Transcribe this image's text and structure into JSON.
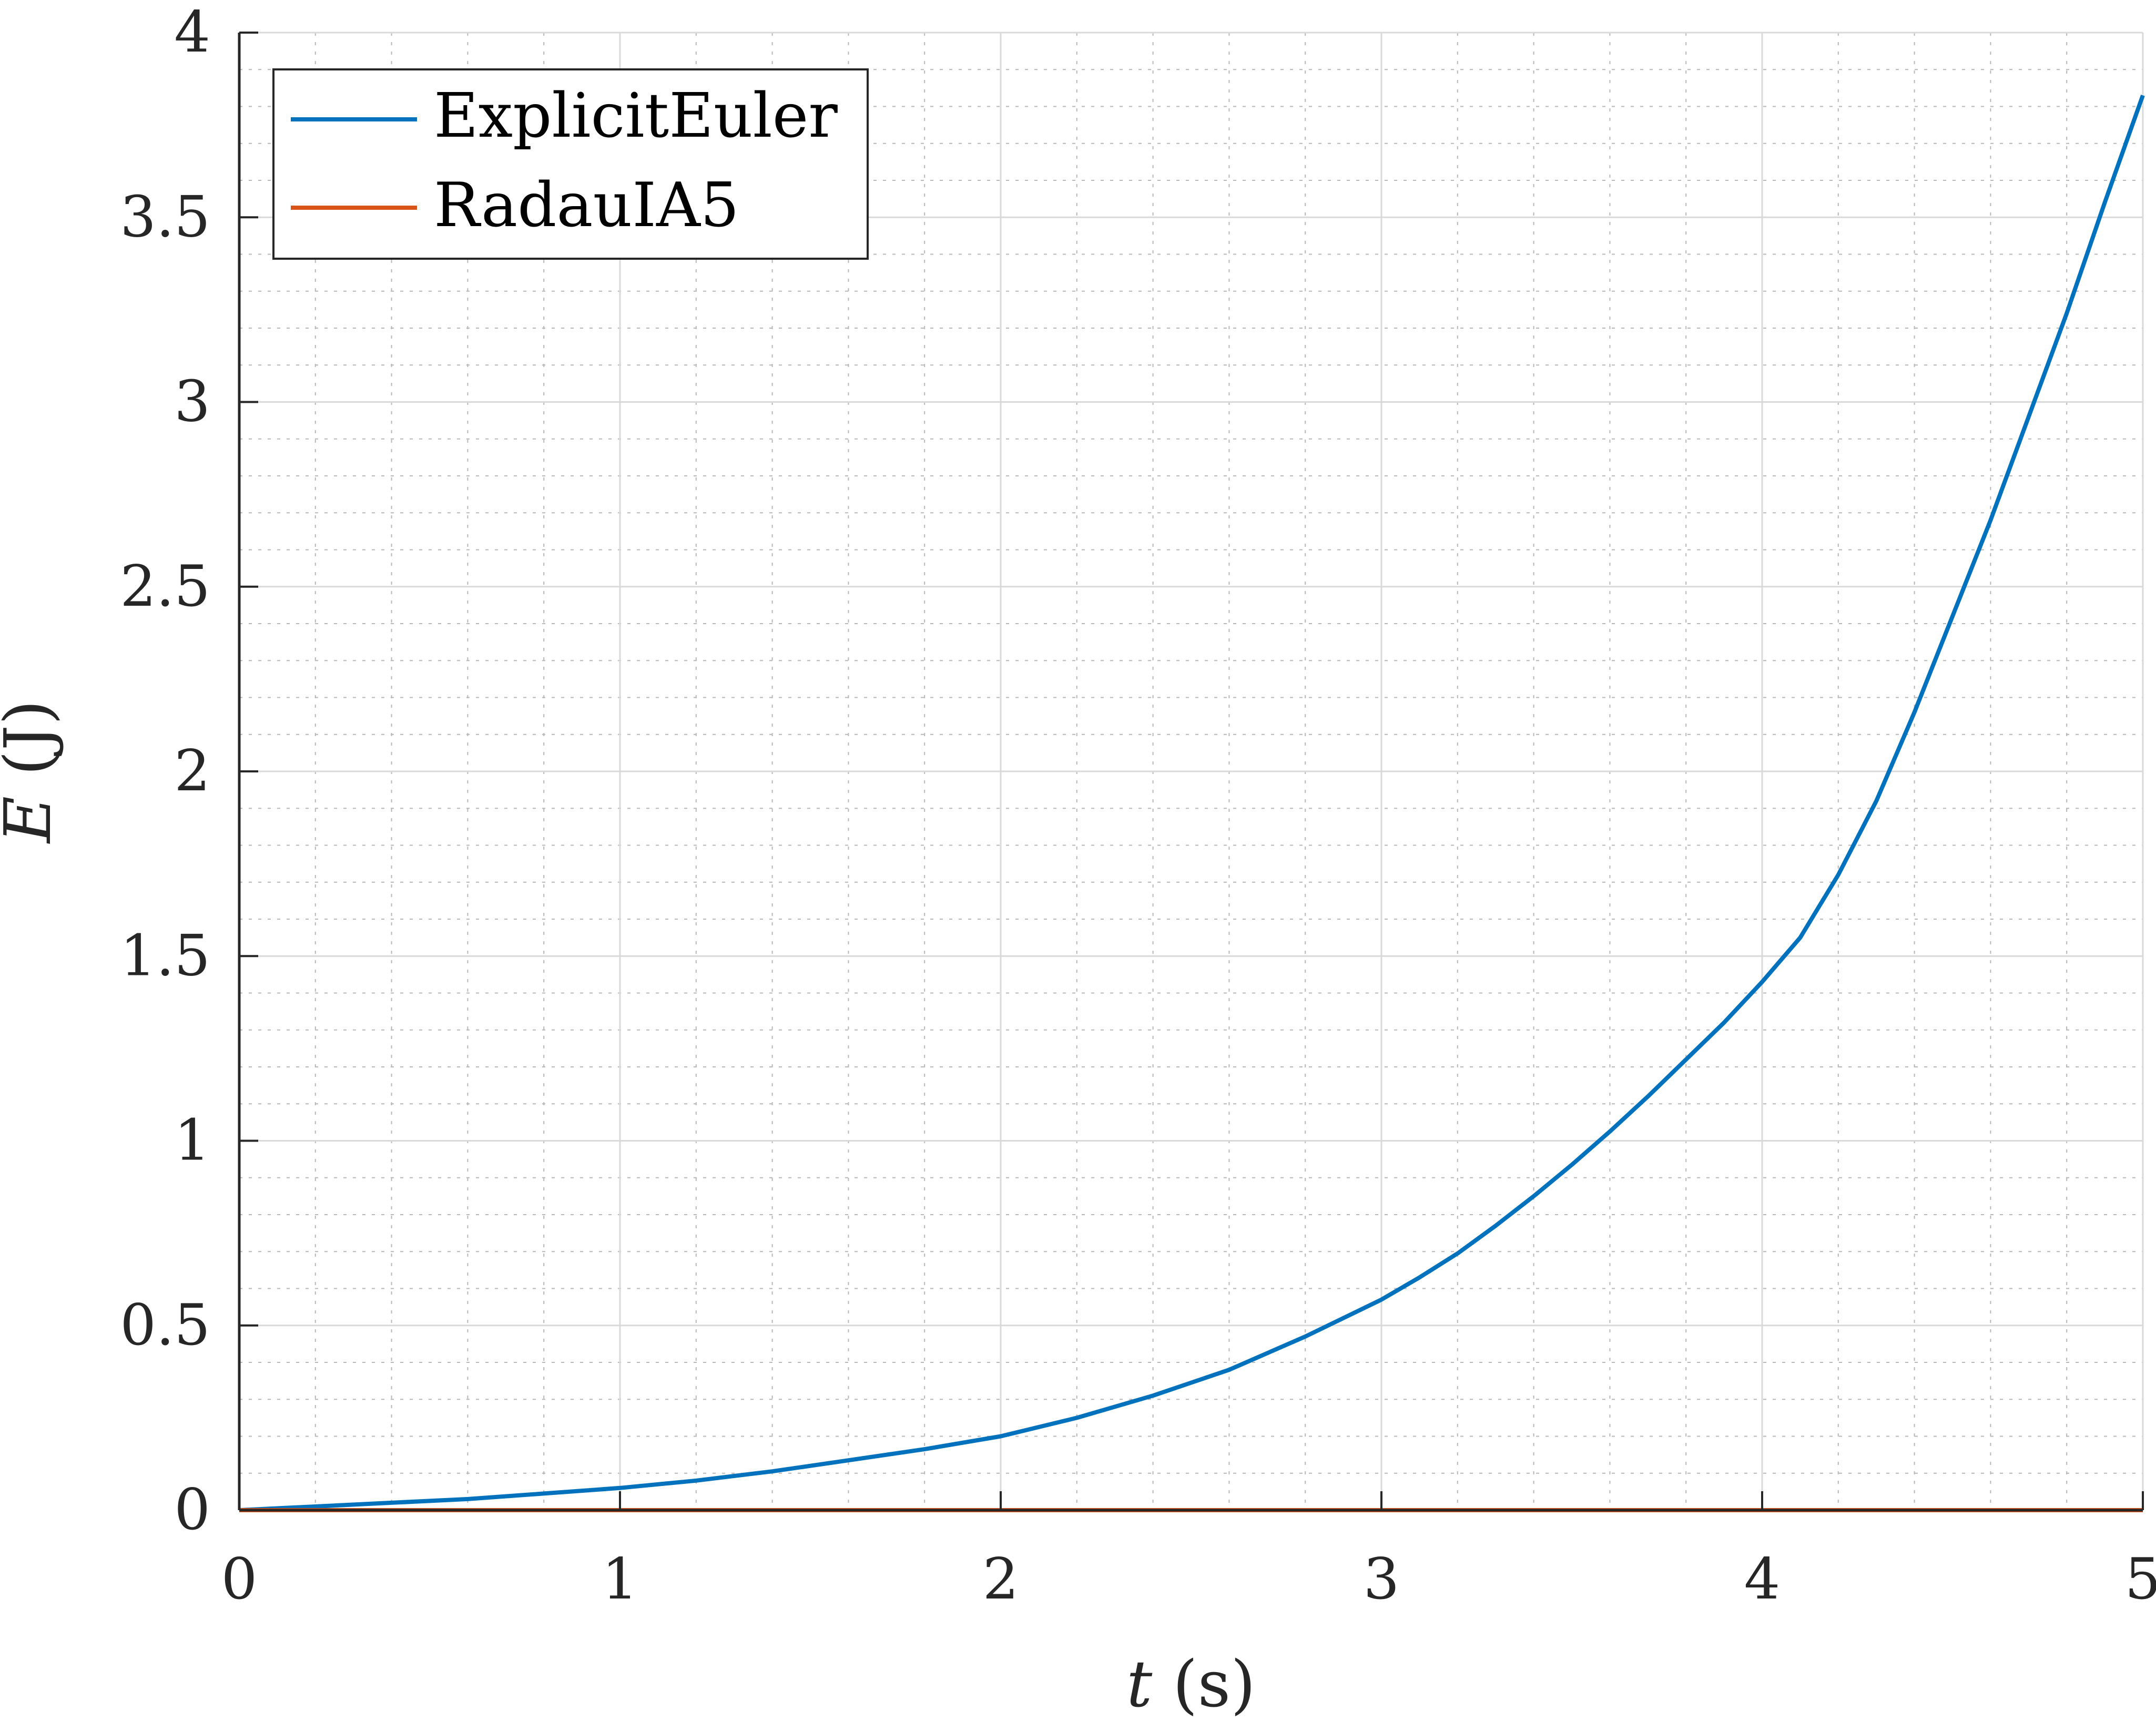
{
  "chart_data": {
    "type": "line",
    "xlabel": "t (s)",
    "ylabel": "E (J)",
    "xlim": [
      0,
      5
    ],
    "ylim": [
      0,
      4
    ],
    "xticks": [
      "0",
      "1",
      "2",
      "3",
      "4",
      "5"
    ],
    "yticks": [
      "0",
      "0.5",
      "1",
      "1.5",
      "2",
      "2.5",
      "3",
      "3.5",
      "4"
    ],
    "grid": true,
    "minor_grid": true,
    "legend_position": "top-left",
    "series": [
      {
        "name": "ExplicitEuler",
        "color": "#0072BD",
        "x": [
          0,
          0.2,
          0.4,
          0.6,
          0.8,
          1.0,
          1.2,
          1.4,
          1.6,
          1.8,
          2.0,
          2.2,
          2.4,
          2.6,
          2.8,
          3.0,
          3.1,
          3.2,
          3.3,
          3.4,
          3.5,
          3.6,
          3.7,
          3.8,
          3.9,
          4.0,
          4.1,
          4.2,
          4.3,
          4.4,
          4.5,
          4.6,
          4.7,
          4.8,
          4.9,
          5.0
        ],
        "y": [
          0,
          0.01,
          0.02,
          0.03,
          0.045,
          0.06,
          0.08,
          0.105,
          0.135,
          0.165,
          0.2,
          0.25,
          0.31,
          0.38,
          0.47,
          0.57,
          0.63,
          0.695,
          0.77,
          0.85,
          0.935,
          1.025,
          1.12,
          1.22,
          1.32,
          1.43,
          1.55,
          1.72,
          1.92,
          2.16,
          2.42,
          2.68,
          2.96,
          3.24,
          3.54,
          3.83
        ]
      },
      {
        "name": "RadauIA5",
        "color": "#D95319",
        "x": [
          0,
          5
        ],
        "y": [
          0,
          0
        ]
      }
    ]
  }
}
